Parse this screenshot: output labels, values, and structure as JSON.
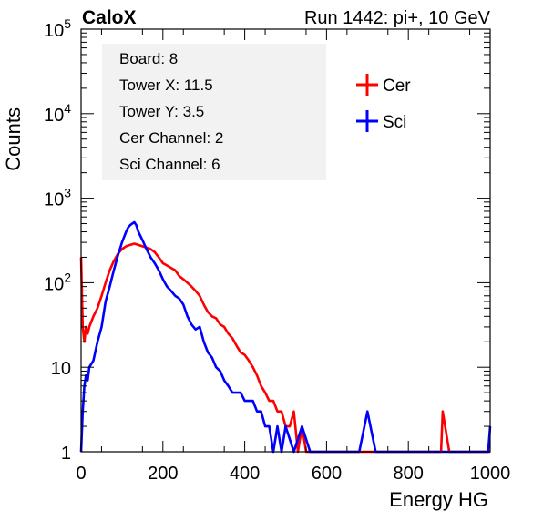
{
  "header": {
    "experiment": "CaloX",
    "run_info": "Run 1442: pi+, 10 GeV"
  },
  "info_box": {
    "lines": [
      "Board: 8",
      "Tower X: 11.5",
      "Tower Y: 3.5",
      "Cer Channel: 2",
      "Sci Channel: 6"
    ]
  },
  "colors": {
    "cer": "#ff0000",
    "sci": "#0000ff",
    "axis": "#000000"
  },
  "chart_data": {
    "type": "line",
    "title": "",
    "xlabel": "Energy HG",
    "ylabel": "Counts",
    "xlim": [
      0,
      1000
    ],
    "ylim": [
      1,
      100000
    ],
    "yscale": "log",
    "x_ticks": [
      0,
      200,
      400,
      600,
      800,
      1000
    ],
    "x_tick_labels": [
      "0",
      "200",
      "400",
      "600",
      "800",
      "1000"
    ],
    "y_tick_labels": [
      {
        "value": 1,
        "base": "1",
        "exp": ""
      },
      {
        "value": 10,
        "base": "10",
        "exp": ""
      },
      {
        "value": 100,
        "base": "10",
        "exp": "2"
      },
      {
        "value": 1000,
        "base": "10",
        "exp": "3"
      },
      {
        "value": 10000,
        "base": "10",
        "exp": "4"
      },
      {
        "value": 100000,
        "base": "10",
        "exp": "5"
      }
    ],
    "legend_position": "top-right",
    "grid": false,
    "series": [
      {
        "name": "Cer",
        "x": [
          0,
          4,
          8,
          12,
          16,
          20,
          30,
          40,
          50,
          60,
          70,
          80,
          90,
          100,
          110,
          120,
          130,
          140,
          150,
          160,
          170,
          180,
          190,
          200,
          210,
          220,
          230,
          240,
          250,
          260,
          270,
          280,
          290,
          300,
          310,
          320,
          330,
          340,
          350,
          360,
          370,
          380,
          390,
          400,
          410,
          420,
          430,
          440,
          450,
          460,
          470,
          480,
          490,
          500,
          510,
          520,
          530,
          540,
          550,
          560,
          570,
          580,
          600,
          620,
          640,
          660,
          680,
          700,
          720,
          740,
          760,
          780,
          800,
          840,
          880,
          884,
          900,
          940,
          980,
          1000
        ],
        "y": [
          200,
          30,
          20,
          30,
          25,
          30,
          40,
          50,
          70,
          100,
          140,
          180,
          220,
          250,
          270,
          280,
          290,
          280,
          270,
          260,
          250,
          230,
          200,
          170,
          160,
          150,
          140,
          120,
          110,
          100,
          90,
          80,
          70,
          55,
          45,
          40,
          38,
          32,
          30,
          25,
          22,
          18,
          15,
          14,
          12,
          10,
          8,
          6,
          5,
          4,
          4,
          3,
          3,
          2,
          2,
          3,
          1,
          2,
          1,
          1,
          1,
          1,
          1,
          1,
          1,
          1,
          1,
          1,
          1,
          1,
          1,
          1,
          1,
          1,
          1,
          3,
          1,
          1,
          1,
          1
        ]
      },
      {
        "name": "Sci",
        "x": [
          0,
          4,
          8,
          12,
          16,
          20,
          30,
          40,
          50,
          60,
          70,
          80,
          90,
          100,
          110,
          115,
          120,
          125,
          130,
          135,
          140,
          150,
          160,
          170,
          180,
          190,
          200,
          210,
          220,
          230,
          240,
          250,
          260,
          270,
          280,
          290,
          300,
          310,
          320,
          330,
          340,
          350,
          360,
          370,
          380,
          390,
          400,
          410,
          420,
          430,
          440,
          450,
          460,
          470,
          480,
          490,
          500,
          520,
          540,
          560,
          580,
          600,
          620,
          640,
          660,
          680,
          700,
          720,
          740,
          760,
          780,
          800,
          820,
          840,
          860,
          880,
          900,
          920,
          940,
          960,
          980,
          995,
          1000
        ],
        "y": [
          1,
          3,
          6,
          8,
          7,
          10,
          12,
          20,
          30,
          60,
          90,
          140,
          210,
          300,
          400,
          450,
          480,
          500,
          520,
          480,
          400,
          320,
          250,
          200,
          170,
          140,
          110,
          90,
          80,
          70,
          65,
          55,
          40,
          32,
          28,
          30,
          20,
          15,
          13,
          10,
          9,
          7,
          6,
          5,
          5,
          5,
          4,
          4,
          4,
          3,
          3,
          2,
          2,
          1,
          2,
          1,
          2,
          1,
          2,
          1,
          1,
          1,
          1,
          1,
          1,
          1,
          3,
          1,
          1,
          1,
          1,
          1,
          1,
          1,
          1,
          1,
          1,
          1,
          1,
          1,
          1,
          1,
          2
        ]
      }
    ]
  }
}
